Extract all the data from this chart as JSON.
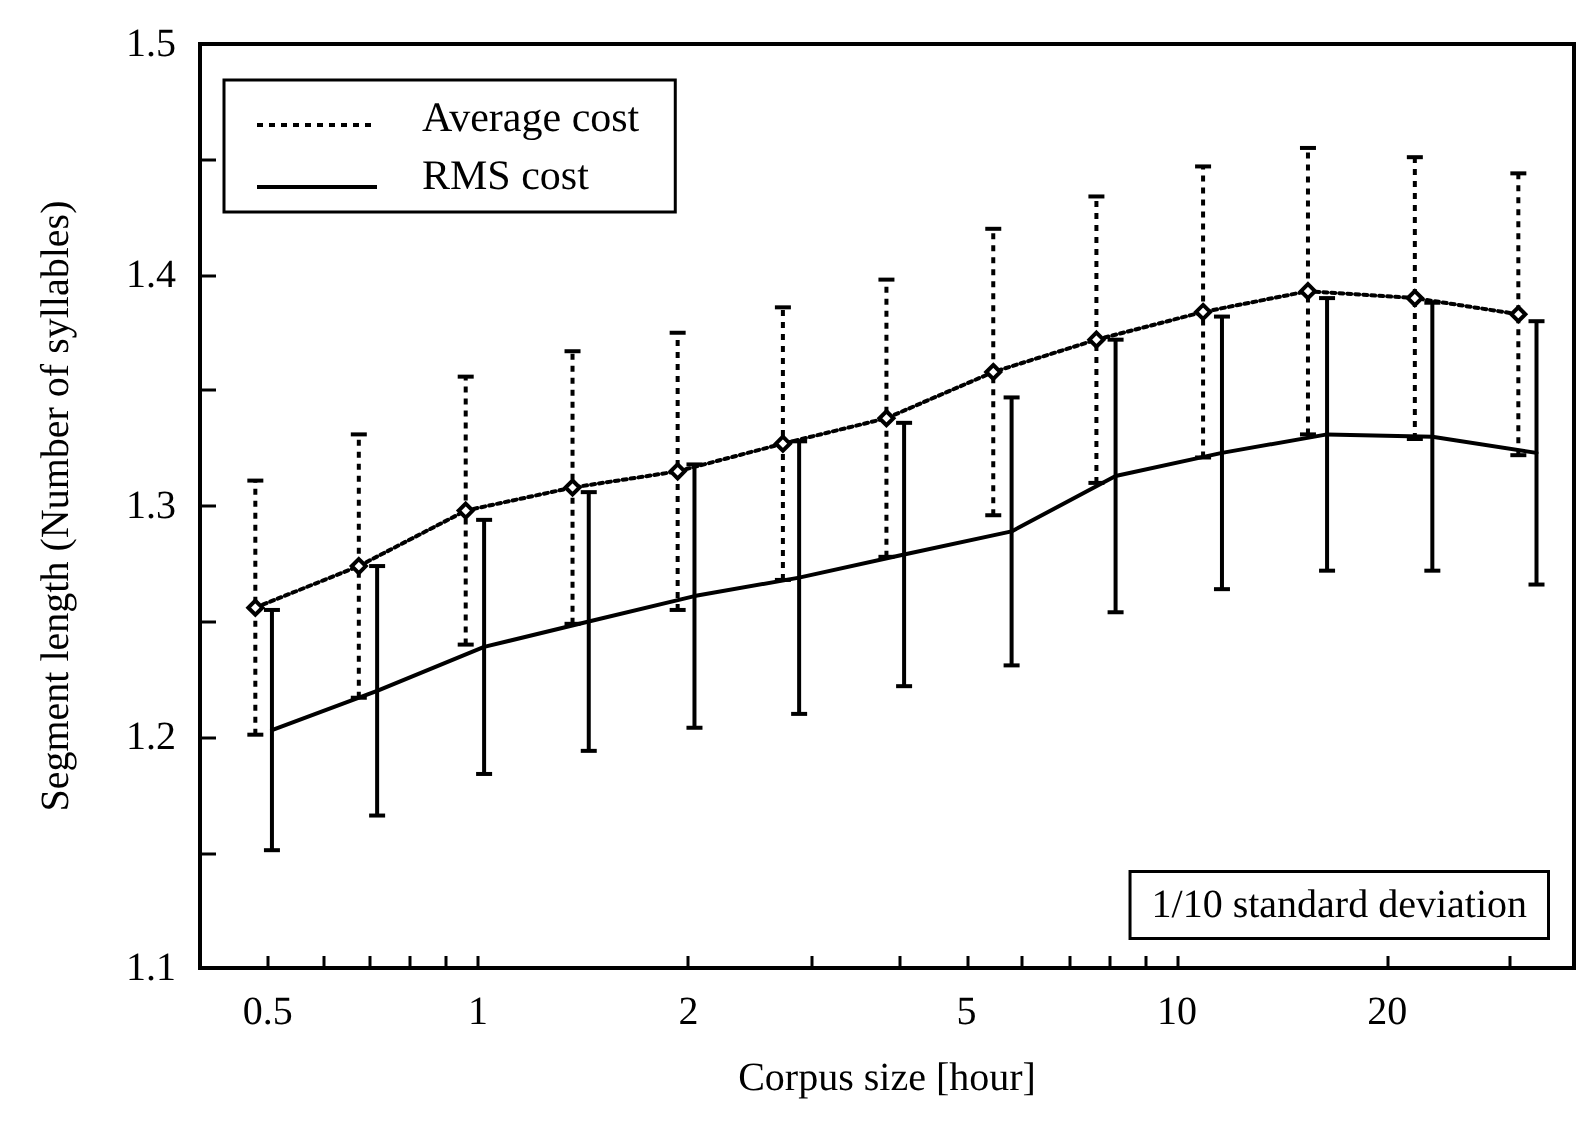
{
  "chart_data": {
    "type": "line",
    "xlabel": "Corpus size [hour]",
    "ylabel": "Segment length (Number of syllables)",
    "series": [
      {
        "name": "Average cost",
        "color": "#000000",
        "line_style": "dotted",
        "marker": "diamond",
        "x": [
          0.48,
          0.675,
          0.96,
          1.365,
          1.93,
          2.73,
          3.84,
          5.46,
          7.67,
          10.9,
          15.4,
          21.9,
          30.8
        ],
        "values": [
          1.256,
          1.274,
          1.298,
          1.308,
          1.315,
          1.327,
          1.338,
          1.358,
          1.372,
          1.384,
          1.393,
          1.39,
          1.383
        ],
        "errors": [
          0.055,
          0.057,
          0.058,
          0.059,
          0.06,
          0.059,
          0.06,
          0.062,
          0.062,
          0.063,
          0.062,
          0.061,
          0.061
        ]
      },
      {
        "name": "RMS cost",
        "color": "#000000",
        "line_style": "solid",
        "marker": "none",
        "x": [
          0.507,
          0.717,
          1.02,
          1.44,
          2.04,
          2.88,
          4.07,
          5.8,
          8.17,
          11.6,
          16.4,
          23.2,
          32.7
        ],
        "values": [
          1.203,
          1.22,
          1.239,
          1.25,
          1.261,
          1.269,
          1.279,
          1.289,
          1.313,
          1.323,
          1.331,
          1.33,
          1.323
        ],
        "errors": [
          0.052,
          0.054,
          0.055,
          0.056,
          0.057,
          0.059,
          0.057,
          0.058,
          0.059,
          0.059,
          0.059,
          0.058,
          0.057
        ]
      }
    ],
    "log": "x",
    "xlim": [
      0.4,
      37
    ],
    "xticks": [
      {
        "value": 0.4,
        "label": null
      },
      0.5,
      {
        "value": 0.6,
        "label": null
      },
      {
        "value": 0.7,
        "label": null
      },
      {
        "value": 0.8,
        "label": null
      },
      {
        "value": 0.9,
        "label": null
      },
      1,
      2,
      {
        "value": 3,
        "label": null
      },
      {
        "value": 4,
        "label": null
      },
      5,
      {
        "value": 6,
        "label": null
      },
      {
        "value": 7,
        "label": null
      },
      {
        "value": 8,
        "label": null
      },
      {
        "value": 9,
        "label": null
      },
      10,
      20,
      {
        "value": 30,
        "label": null
      }
    ],
    "ylim": [
      1.1,
      1.5
    ],
    "yticks": [
      1.1,
      {
        "value": 1.15,
        "label": null
      },
      1.2,
      {
        "value": 1.25,
        "label": null
      },
      1.3,
      {
        "value": 1.35,
        "label": null
      },
      1.4,
      {
        "value": 1.45,
        "label": null
      },
      1.5
    ],
    "grid": false,
    "legend": "top left",
    "annotations": [
      "1/10 standard deviation"
    ]
  }
}
